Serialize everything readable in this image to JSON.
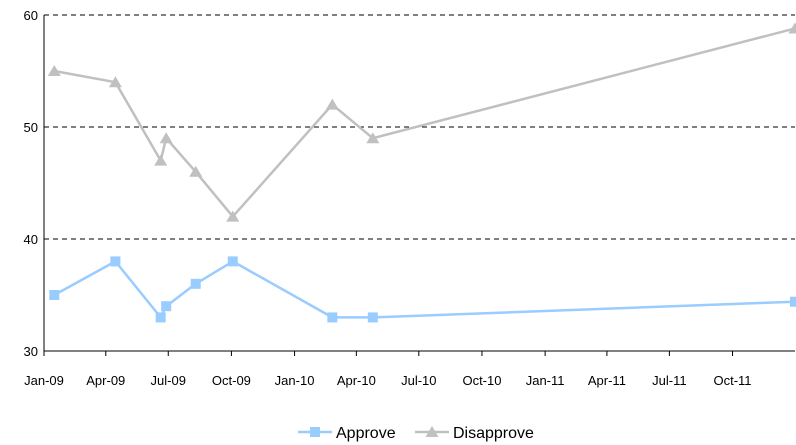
{
  "chart_data": {
    "type": "line",
    "title": "",
    "xlabel": "",
    "ylabel": "",
    "ylim": [
      30,
      60
    ],
    "yticks": [
      30,
      40,
      50,
      60
    ],
    "x_range": [
      "2009-01-01",
      "2011-12-31"
    ],
    "xticks": [
      {
        "date": "2009-01-01",
        "label": "Jan-09"
      },
      {
        "date": "2009-04-01",
        "label": "Apr-09"
      },
      {
        "date": "2009-07-01",
        "label": "Jul-09"
      },
      {
        "date": "2009-10-01",
        "label": "Oct-09"
      },
      {
        "date": "2010-01-01",
        "label": "Jan-10"
      },
      {
        "date": "2010-04-01",
        "label": "Apr-10"
      },
      {
        "date": "2010-07-01",
        "label": "Jul-10"
      },
      {
        "date": "2010-10-01",
        "label": "Oct-10"
      },
      {
        "date": "2011-01-01",
        "label": "Jan-11"
      },
      {
        "date": "2011-04-01",
        "label": "Apr-11"
      },
      {
        "date": "2011-07-01",
        "label": "Jul-11"
      },
      {
        "date": "2011-10-01",
        "label": "Oct-11"
      }
    ],
    "grid": "horizontal-dashed",
    "legend_position": "bottom-center",
    "series": [
      {
        "name": "Approve",
        "color": "#99ccff",
        "marker": "square",
        "points": [
          {
            "x": "2009-01-16",
            "y": 35
          },
          {
            "x": "2009-04-15",
            "y": 38
          },
          {
            "x": "2009-06-20",
            "y": 33
          },
          {
            "x": "2009-06-28",
            "y": 34
          },
          {
            "x": "2009-08-10",
            "y": 36
          },
          {
            "x": "2009-10-03",
            "y": 38
          },
          {
            "x": "2010-02-25",
            "y": 33
          },
          {
            "x": "2010-04-25",
            "y": 33
          },
          {
            "x": "2011-12-31",
            "y": 34.4
          }
        ]
      },
      {
        "name": "Disapprove",
        "color": "#c0c0c0",
        "marker": "triangle",
        "points": [
          {
            "x": "2009-01-16",
            "y": 55
          },
          {
            "x": "2009-04-15",
            "y": 54
          },
          {
            "x": "2009-06-20",
            "y": 47
          },
          {
            "x": "2009-06-28",
            "y": 49
          },
          {
            "x": "2009-08-10",
            "y": 46
          },
          {
            "x": "2009-10-03",
            "y": 42
          },
          {
            "x": "2010-02-25",
            "y": 52
          },
          {
            "x": "2010-04-25",
            "y": 49
          },
          {
            "x": "2011-12-31",
            "y": 58.8
          }
        ]
      }
    ]
  }
}
